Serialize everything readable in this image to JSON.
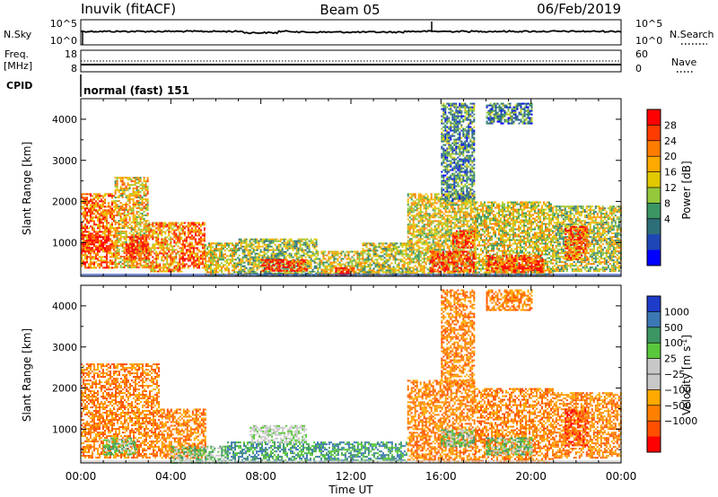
{
  "header": {
    "station": "Inuvik (fitACF)",
    "beam": "Beam 05",
    "date": "06/Feb/2019"
  },
  "side_labels": {
    "nsky": "N.Sky",
    "nsearch": "N.Search",
    "freq_line1": "Freq.",
    "freq_line2": "[MHz]",
    "nave": "Nave",
    "cpid": "CPID"
  },
  "cpid_text": "normal (fast) 151",
  "noise_panel": {
    "left_ticks": [
      "10^5",
      "10^0"
    ],
    "right_ticks": [
      "10^5",
      "10^0"
    ]
  },
  "freq_panel": {
    "left_ticks": [
      "18",
      "8"
    ],
    "right_ticks": [
      "60",
      "0"
    ]
  },
  "time_axis": {
    "label": "Time UT",
    "ticks": [
      "00:00",
      "04:00",
      "08:00",
      "12:00",
      "16:00",
      "20:00",
      "00:00"
    ]
  },
  "chart_data": [
    {
      "type": "heatmap",
      "panel": "power",
      "ylabel": "Slant Range [km]",
      "yticks": [
        1000,
        2000,
        3000,
        4000
      ],
      "ylim": [
        180,
        4500
      ],
      "xlim_hours": [
        0,
        24
      ],
      "colorbar": {
        "label": "Power [dB]",
        "ticks": [
          "28",
          "24",
          "20",
          "16",
          "12",
          "8",
          "4"
        ],
        "colors": [
          "#ff0000",
          "#ff3c00",
          "#ff7d00",
          "#ffaa00",
          "#e1c800",
          "#96c83c",
          "#3c9664",
          "#2d6e78",
          "#1e46b4",
          "#0000ff"
        ]
      },
      "regions": [
        {
          "t0": 0.0,
          "t1": 1.5,
          "r0": 400,
          "r1": 2200,
          "v": 0.75
        },
        {
          "t0": 0.0,
          "t1": 1.2,
          "r0": 800,
          "r1": 1200,
          "v": 0.95
        },
        {
          "t0": 1.5,
          "t1": 3.0,
          "r0": 400,
          "r1": 2600,
          "v": 0.6
        },
        {
          "t0": 2.0,
          "t1": 3.0,
          "r0": 600,
          "r1": 1200,
          "v": 0.9
        },
        {
          "t0": 3.0,
          "t1": 4.5,
          "r0": 300,
          "r1": 1500,
          "v": 0.7
        },
        {
          "t0": 4.5,
          "t1": 5.5,
          "r0": 400,
          "r1": 1500,
          "v": 0.8
        },
        {
          "t0": 5.5,
          "t1": 7.0,
          "r0": 200,
          "r1": 1000,
          "v": 0.55
        },
        {
          "t0": 7.0,
          "t1": 10.5,
          "r0": 200,
          "r1": 1100,
          "v": 0.45
        },
        {
          "t0": 8.0,
          "t1": 10.0,
          "r0": 300,
          "r1": 600,
          "v": 0.9
        },
        {
          "t0": 10.5,
          "t1": 12.5,
          "r0": 200,
          "r1": 800,
          "v": 0.55
        },
        {
          "t0": 11.3,
          "t1": 12.1,
          "r0": 200,
          "r1": 400,
          "v": 0.95
        },
        {
          "t0": 12.5,
          "t1": 14.5,
          "r0": 200,
          "r1": 1000,
          "v": 0.5
        },
        {
          "t0": 14.5,
          "t1": 17.5,
          "r0": 200,
          "r1": 2200,
          "v": 0.55
        },
        {
          "t0": 15.5,
          "t1": 17.5,
          "r0": 300,
          "r1": 800,
          "v": 0.85
        },
        {
          "t0": 16.5,
          "t1": 17.5,
          "r0": 900,
          "r1": 1300,
          "v": 0.85
        },
        {
          "t0": 17.5,
          "t1": 21.0,
          "r0": 200,
          "r1": 2000,
          "v": 0.55
        },
        {
          "t0": 18.0,
          "t1": 20.5,
          "r0": 300,
          "r1": 700,
          "v": 0.85
        },
        {
          "t0": 21.0,
          "t1": 24.0,
          "r0": 300,
          "r1": 1900,
          "v": 0.5
        },
        {
          "t0": 21.5,
          "t1": 22.5,
          "r0": 600,
          "r1": 1400,
          "v": 0.8
        },
        {
          "t0": 16.0,
          "t1": 17.5,
          "r0": 2000,
          "r1": 4400,
          "v": 0.3
        },
        {
          "t0": 18.0,
          "t1": 20.0,
          "r0": 3900,
          "r1": 4400,
          "v": 0.3
        }
      ]
    },
    {
      "type": "heatmap",
      "panel": "velocity",
      "ylabel": "Slant Range [km]",
      "yticks": [
        1000,
        2000,
        3000,
        4000
      ],
      "ylim": [
        180,
        4500
      ],
      "xlim_hours": [
        0,
        24
      ],
      "colorbar": {
        "label": "Velocity [m s^-1]",
        "ticks": [
          "1000",
          "500",
          "100",
          "25",
          "−25",
          "−100",
          "−500",
          "−1000"
        ],
        "colors": [
          "#1e3cc8",
          "#3c78b4",
          "#3c9664",
          "#5ac83c",
          "#c8c8c8",
          "#c8c8c8",
          "#ffaa00",
          "#ff8000",
          "#ff5000",
          "#ff0000"
        ]
      },
      "regions": [
        {
          "t0": 0.0,
          "t1": 3.5,
          "r0": 300,
          "r1": 2600,
          "v": 7
        },
        {
          "t0": 1.0,
          "t1": 2.5,
          "r0": 400,
          "r1": 800,
          "v": 3
        },
        {
          "t0": 3.5,
          "t1": 5.5,
          "r0": 300,
          "r1": 1500,
          "v": 7
        },
        {
          "t0": 4.0,
          "t1": 6.5,
          "r0": 200,
          "r1": 600,
          "v": 3
        },
        {
          "t0": 6.5,
          "t1": 11.0,
          "r0": 200,
          "r1": 700,
          "v": 2
        },
        {
          "t0": 7.5,
          "t1": 10.0,
          "r0": 700,
          "r1": 1100,
          "v": 4
        },
        {
          "t0": 11.0,
          "t1": 14.5,
          "r0": 200,
          "r1": 700,
          "v": 2
        },
        {
          "t0": 14.5,
          "t1": 17.5,
          "r0": 200,
          "r1": 2200,
          "v": 7
        },
        {
          "t0": 16.0,
          "t1": 17.5,
          "r0": 600,
          "r1": 1000,
          "v": 3
        },
        {
          "t0": 17.5,
          "t1": 21.0,
          "r0": 200,
          "r1": 2000,
          "v": 7
        },
        {
          "t0": 18.0,
          "t1": 20.0,
          "r0": 400,
          "r1": 800,
          "v": 3
        },
        {
          "t0": 21.0,
          "t1": 24.0,
          "r0": 300,
          "r1": 1900,
          "v": 7
        },
        {
          "t0": 21.5,
          "t1": 22.5,
          "r0": 600,
          "r1": 1500,
          "v": 8
        },
        {
          "t0": 16.0,
          "t1": 17.5,
          "r0": 2000,
          "r1": 4400,
          "v": 7
        },
        {
          "t0": 18.0,
          "t1": 20.0,
          "r0": 3900,
          "r1": 4400,
          "v": 7
        }
      ]
    }
  ]
}
